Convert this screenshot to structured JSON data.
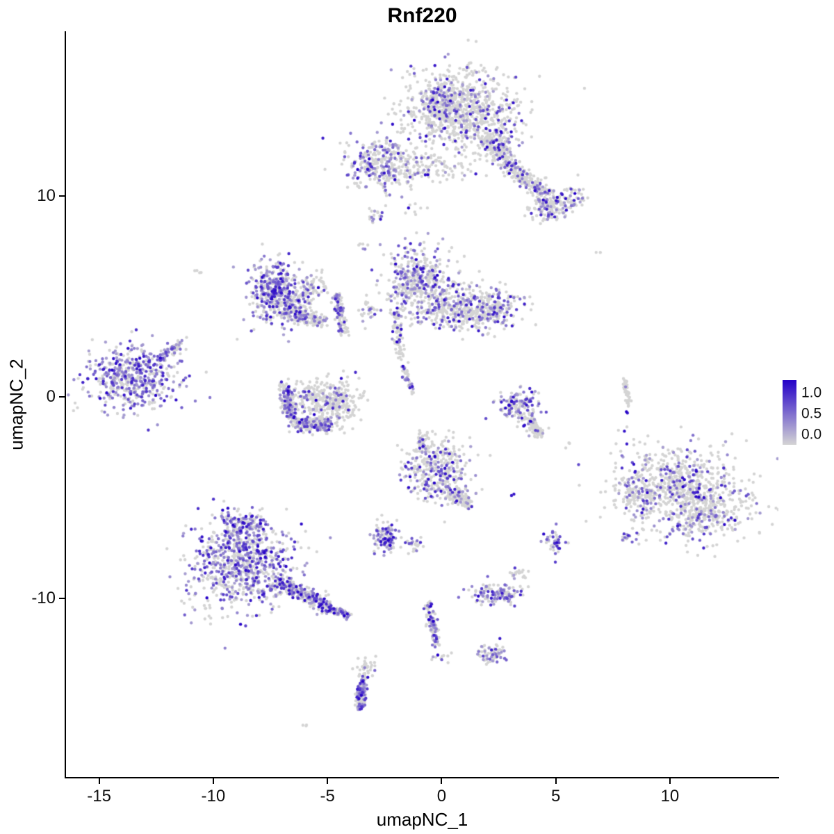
{
  "chart_data": {
    "type": "scatter",
    "title": "Rnf220",
    "xlabel": "umapNC_1",
    "ylabel": "umapNC_2",
    "xlim": [
      -16.45,
      14.75
    ],
    "ylim": [
      -18.9,
      18.2
    ],
    "xticks": [
      -15,
      -10,
      -5,
      0,
      5,
      10
    ],
    "yticks": [
      -10,
      0,
      10
    ],
    "grid": false,
    "legend_position": "right",
    "color_scale": {
      "low": "#d4d4d4",
      "high": "#2400c8",
      "legend_ticks": [
        "1.0",
        "0.5",
        "0.0"
      ]
    },
    "point_radius": 2.2,
    "seed": 42,
    "clusters": [
      {
        "shape": "blob",
        "cx": 0.9,
        "cy": 14.3,
        "sx": 1.25,
        "sy": 1.0,
        "n": 800,
        "frac": 0.18
      },
      {
        "shape": "blob",
        "cx": -0.1,
        "cy": 14.6,
        "sx": 0.5,
        "sy": 0.6,
        "n": 150,
        "frac": 0.3
      },
      {
        "shape": "strip",
        "x1": 1.8,
        "y1": 13.0,
        "x2": 3.1,
        "y2": 11.4,
        "w": 0.5,
        "n": 140,
        "frac": 0.15
      },
      {
        "shape": "strip",
        "x1": 3.0,
        "y1": 11.4,
        "x2": 4.9,
        "y2": 9.8,
        "w": 0.55,
        "n": 230,
        "frac": 0.2
      },
      {
        "shape": "blob",
        "cx": 4.8,
        "cy": 9.4,
        "sx": 0.45,
        "sy": 0.35,
        "n": 110,
        "frac": 0.25
      },
      {
        "shape": "blob",
        "cx": 5.7,
        "cy": 9.9,
        "sx": 0.35,
        "sy": 0.3,
        "n": 60,
        "frac": 0.2
      },
      {
        "shape": "blob",
        "cx": 2.6,
        "cy": 12.8,
        "sx": 0.4,
        "sy": 0.5,
        "n": 80,
        "frac": 0.2
      },
      {
        "shape": "blob",
        "cx": -2.6,
        "cy": 11.6,
        "sx": 0.8,
        "sy": 0.65,
        "n": 330,
        "frac": 0.35
      },
      {
        "shape": "blob",
        "cx": -0.4,
        "cy": 11.4,
        "sx": 1.1,
        "sy": 0.4,
        "n": 110,
        "frac": 0.15
      },
      {
        "shape": "blob",
        "cx": -2.9,
        "cy": 9.0,
        "sx": 0.2,
        "sy": 0.25,
        "n": 18,
        "frac": 0.3
      },
      {
        "shape": "blob",
        "cx": -1.2,
        "cy": 9.3,
        "sx": 0.3,
        "sy": 0.25,
        "n": 8,
        "frac": 0.15
      },
      {
        "shape": "blob",
        "cx": -3.5,
        "cy": 7.6,
        "sx": 0.15,
        "sy": 0.15,
        "n": 6,
        "frac": 0.3
      },
      {
        "shape": "blob",
        "cx": -10.6,
        "cy": 6.3,
        "sx": 0.15,
        "sy": 0.12,
        "n": 4,
        "frac": 0
      },
      {
        "shape": "blob",
        "cx": 6.9,
        "cy": 7.2,
        "sx": 0.1,
        "sy": 0.1,
        "n": 2,
        "frac": 0
      },
      {
        "shape": "blob",
        "cx": -7.3,
        "cy": 5.3,
        "sx": 0.55,
        "sy": 0.75,
        "n": 380,
        "frac": 0.55
      },
      {
        "shape": "blob",
        "cx": -6.3,
        "cy": 4.9,
        "sx": 0.45,
        "sy": 0.4,
        "n": 90,
        "frac": 0.12
      },
      {
        "shape": "strip",
        "x1": -7.0,
        "y1": 4.3,
        "x2": -5.2,
        "y2": 3.8,
        "w": 0.45,
        "n": 190,
        "frac": 0.3
      },
      {
        "shape": "strip",
        "x1": -4.6,
        "y1": 5.1,
        "x2": -4.3,
        "y2": 3.1,
        "w": 0.3,
        "n": 100,
        "frac": 0.3
      },
      {
        "shape": "blob",
        "cx": -5.5,
        "cy": 5.6,
        "sx": 0.35,
        "sy": 0.3,
        "n": 45,
        "frac": 0.15
      },
      {
        "shape": "blob",
        "cx": -3.3,
        "cy": 4.3,
        "sx": 0.25,
        "sy": 0.3,
        "n": 25,
        "frac": 0.2
      },
      {
        "shape": "blob",
        "cx": -1.0,
        "cy": 5.8,
        "sx": 0.75,
        "sy": 0.85,
        "n": 430,
        "frac": 0.35
      },
      {
        "shape": "blob",
        "cx": 0.9,
        "cy": 4.5,
        "sx": 1.1,
        "sy": 0.6,
        "n": 380,
        "frac": 0.3
      },
      {
        "shape": "blob",
        "cx": 2.3,
        "cy": 4.4,
        "sx": 0.5,
        "sy": 0.45,
        "n": 130,
        "frac": 0.35
      },
      {
        "shape": "strip",
        "x1": -2.0,
        "y1": 4.4,
        "x2": -1.8,
        "y2": 1.9,
        "w": 0.3,
        "n": 80,
        "frac": 0.3
      },
      {
        "shape": "strip",
        "x1": -1.7,
        "y1": 1.6,
        "x2": -1.3,
        "y2": 0.2,
        "w": 0.2,
        "n": 40,
        "frac": 0.4
      },
      {
        "shape": "blob",
        "cx": -13.5,
        "cy": 0.9,
        "sx": 1.0,
        "sy": 0.8,
        "n": 520,
        "frac": 0.6
      },
      {
        "shape": "strip",
        "x1": -12.3,
        "y1": 1.9,
        "x2": -11.4,
        "y2": 2.7,
        "w": 0.3,
        "n": 70,
        "frac": 0.3
      },
      {
        "shape": "strip",
        "x1": -6.9,
        "y1": 0.5,
        "x2": -6.6,
        "y2": -1.0,
        "w": 0.4,
        "n": 150,
        "frac": 0.5
      },
      {
        "shape": "strip",
        "x1": -6.5,
        "y1": -1.3,
        "x2": -5.0,
        "y2": -1.4,
        "w": 0.45,
        "n": 220,
        "frac": 0.3
      },
      {
        "shape": "blob",
        "cx": -4.6,
        "cy": -0.3,
        "sx": 0.5,
        "sy": 0.6,
        "n": 260,
        "frac": 0.12
      },
      {
        "shape": "blob",
        "cx": -5.7,
        "cy": -0.1,
        "sx": 0.45,
        "sy": 0.45,
        "n": 120,
        "frac": 0.15
      },
      {
        "shape": "blob",
        "cx": 3.4,
        "cy": -0.5,
        "sx": 0.45,
        "sy": 0.4,
        "n": 150,
        "frac": 0.45
      },
      {
        "shape": "strip",
        "x1": 3.8,
        "y1": -1.1,
        "x2": 4.3,
        "y2": -1.9,
        "w": 0.3,
        "n": 90,
        "frac": 0.08
      },
      {
        "shape": "strip",
        "x1": 8.0,
        "y1": 0.9,
        "x2": 8.2,
        "y2": -0.4,
        "w": 0.15,
        "n": 45,
        "frac": 0.04
      },
      {
        "shape": "blob",
        "cx": 8.1,
        "cy": -0.8,
        "sx": 0.08,
        "sy": 0.08,
        "n": 2,
        "frac": 1
      },
      {
        "shape": "blob",
        "cx": -0.3,
        "cy": -3.6,
        "sx": 0.75,
        "sy": 0.75,
        "n": 360,
        "frac": 0.3
      },
      {
        "shape": "strip",
        "x1": 0.3,
        "y1": -4.6,
        "x2": 1.2,
        "y2": -5.4,
        "w": 0.4,
        "n": 110,
        "frac": 0.2
      },
      {
        "shape": "strip",
        "x1": -0.7,
        "y1": -2.7,
        "x2": -1.0,
        "y2": -1.9,
        "w": 0.25,
        "n": 50,
        "frac": 0.25
      },
      {
        "shape": "blob",
        "cx": 3.0,
        "cy": -4.9,
        "sx": 0.08,
        "sy": 0.08,
        "n": 2,
        "frac": 1
      },
      {
        "shape": "blob",
        "cx": 5.6,
        "cy": -2.4,
        "sx": 0.1,
        "sy": 0.1,
        "n": 3,
        "frac": 0
      },
      {
        "shape": "blob",
        "cx": 10.2,
        "cy": -4.2,
        "sx": 1.35,
        "sy": 1.0,
        "n": 520,
        "frac": 0.2
      },
      {
        "shape": "blob",
        "cx": 11.3,
        "cy": -5.6,
        "sx": 1.15,
        "sy": 0.85,
        "n": 420,
        "frac": 0.22
      },
      {
        "shape": "blob",
        "cx": 8.6,
        "cy": -4.8,
        "sx": 0.5,
        "sy": 0.6,
        "n": 90,
        "frac": 0.3
      },
      {
        "shape": "blob",
        "cx": 8.2,
        "cy": -7.0,
        "sx": 0.2,
        "sy": 0.15,
        "n": 14,
        "frac": 0.4
      },
      {
        "shape": "blob",
        "cx": -8.7,
        "cy": -8.3,
        "sx": 1.1,
        "sy": 1.1,
        "n": 780,
        "frac": 0.55
      },
      {
        "shape": "blob",
        "cx": -8.8,
        "cy": -6.4,
        "sx": 0.55,
        "sy": 0.45,
        "n": 140,
        "frac": 0.5
      },
      {
        "shape": "strip",
        "x1": -7.2,
        "y1": -9.2,
        "x2": -4.9,
        "y2": -10.5,
        "w": 0.5,
        "n": 260,
        "frac": 0.45
      },
      {
        "shape": "strip",
        "x1": -4.9,
        "y1": -10.5,
        "x2": -4.1,
        "y2": -10.9,
        "w": 0.3,
        "n": 70,
        "frac": 0.4
      },
      {
        "shape": "blob",
        "cx": -2.5,
        "cy": -6.9,
        "sx": 0.3,
        "sy": 0.45,
        "n": 110,
        "frac": 0.6
      },
      {
        "shape": "blob",
        "cx": -1.2,
        "cy": -7.3,
        "sx": 0.2,
        "sy": 0.2,
        "n": 25,
        "frac": 0.4
      },
      {
        "shape": "blob",
        "cx": 4.9,
        "cy": -7.2,
        "sx": 0.25,
        "sy": 0.3,
        "n": 45,
        "frac": 0.5
      },
      {
        "shape": "blob",
        "cx": 3.3,
        "cy": -8.8,
        "sx": 0.2,
        "sy": 0.15,
        "n": 18,
        "frac": 0.3
      },
      {
        "shape": "blob",
        "cx": 2.4,
        "cy": -9.8,
        "sx": 0.55,
        "sy": 0.25,
        "n": 130,
        "frac": 0.5
      },
      {
        "shape": "strip",
        "x1": -0.6,
        "y1": -10.3,
        "x2": -0.2,
        "y2": -12.4,
        "w": 0.25,
        "n": 110,
        "frac": 0.3
      },
      {
        "shape": "blob",
        "cx": -0.5,
        "cy": -10.3,
        "sx": 0.08,
        "sy": 0.08,
        "n": 2,
        "frac": 1
      },
      {
        "shape": "blob",
        "cx": 0.0,
        "cy": -12.9,
        "sx": 0.2,
        "sy": 0.15,
        "n": 12,
        "frac": 0.3
      },
      {
        "shape": "blob",
        "cx": 2.2,
        "cy": -12.7,
        "sx": 0.35,
        "sy": 0.3,
        "n": 70,
        "frac": 0.4
      },
      {
        "shape": "blob",
        "cx": -3.3,
        "cy": -13.4,
        "sx": 0.25,
        "sy": 0.25,
        "n": 35,
        "frac": 0.15
      },
      {
        "shape": "strip",
        "x1": -3.4,
        "y1": -13.9,
        "x2": -3.6,
        "y2": -15.5,
        "w": 0.25,
        "n": 120,
        "frac": 0.5
      },
      {
        "shape": "blob",
        "cx": -6.0,
        "cy": -16.3,
        "sx": 0.12,
        "sy": 0.1,
        "n": 3,
        "frac": 0
      }
    ]
  }
}
